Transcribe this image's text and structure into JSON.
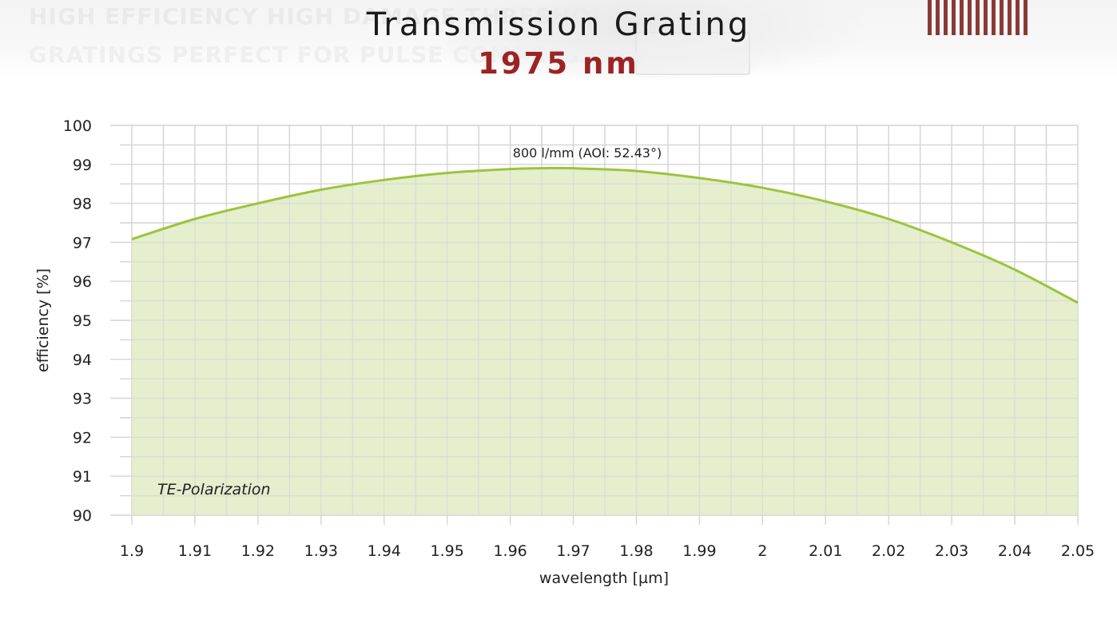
{
  "header": {
    "title": "Transmission Grating",
    "subtitle": "1975 nm",
    "banner_line1": "HIGH EFFICIENCY HIGH DAMAGE THRESHOLD",
    "banner_line2": "GRATINGS PERFECT FOR PULSE COMPRESSION",
    "accent_color": "#9b2324",
    "logo_color": "#8a3a36"
  },
  "chart_data": {
    "type": "area",
    "xlabel": "wavelength [µm]",
    "ylabel": "efficiency [%]",
    "xlim": [
      1.9,
      2.05
    ],
    "ylim": [
      90,
      100
    ],
    "x_ticks": [
      1.9,
      1.91,
      1.92,
      1.93,
      1.94,
      1.95,
      1.96,
      1.97,
      1.98,
      1.99,
      2.0,
      2.01,
      2.02,
      2.03,
      2.04,
      2.05
    ],
    "x_tick_labels": [
      "1.9",
      "1.91",
      "1.92",
      "1.93",
      "1.94",
      "1.95",
      "1.96",
      "1.97",
      "1.98",
      "1.99",
      "2",
      "2.01",
      "2.02",
      "2.03",
      "2.04",
      "2.05"
    ],
    "y_ticks": [
      90,
      91,
      92,
      93,
      94,
      95,
      96,
      97,
      98,
      99,
      100
    ],
    "y_tick_labels": [
      "90",
      "91",
      "92",
      "93",
      "94",
      "95",
      "96",
      "97",
      "98",
      "99",
      "100"
    ],
    "grid": true,
    "series": [
      {
        "name": "800 l/mm (AOI: 52.43°)",
        "color": "#9cc43b",
        "fill": "#e4edca",
        "x": [
          1.9,
          1.91,
          1.92,
          1.93,
          1.94,
          1.95,
          1.96,
          1.965,
          1.97,
          1.98,
          1.99,
          2.0,
          2.01,
          2.02,
          2.03,
          2.04,
          2.05
        ],
        "y": [
          97.08,
          97.6,
          98.0,
          98.35,
          98.6,
          98.78,
          98.88,
          98.9,
          98.9,
          98.83,
          98.65,
          98.4,
          98.05,
          97.6,
          97.0,
          96.3,
          95.45
        ]
      }
    ],
    "annotations": [
      {
        "text": "800 l/mm (AOI: 52.43°)"
      },
      {
        "text": "TE-Polarization"
      }
    ]
  }
}
